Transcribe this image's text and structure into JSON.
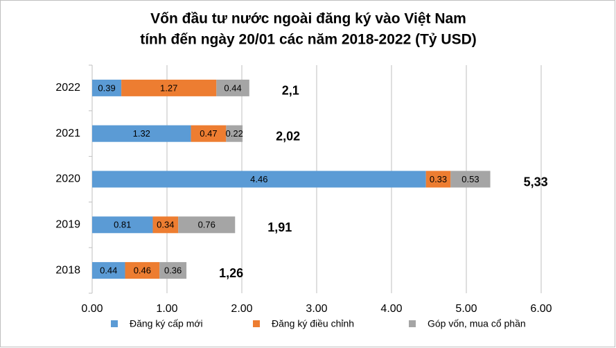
{
  "chart_data": {
    "type": "stacked-bar-horizontal",
    "title": [
      "Vốn đầu tư nước ngoài đăng ký vào Việt Nam",
      "tính đến ngày 20/01 các năm 2018-2022 (Tỷ USD)"
    ],
    "categories": [
      "2022",
      "2021",
      "2020",
      "2019",
      "2018"
    ],
    "series": [
      {
        "name": "Đăng ký cấp mới",
        "color": "#5b9bd5",
        "values": [
          0.39,
          1.32,
          4.46,
          0.81,
          0.44
        ]
      },
      {
        "name": "Đăng ký điều chỉnh",
        "color": "#ed7d31",
        "values": [
          1.27,
          0.47,
          0.33,
          0.34,
          0.46
        ]
      },
      {
        "name": "Góp vốn, mua cổ phần",
        "color": "#a5a5a5",
        "values": [
          0.44,
          0.22,
          0.53,
          0.76,
          0.36
        ]
      }
    ],
    "totals": {
      "values": [
        2.1,
        2.02,
        5.33,
        1.91,
        1.26
      ],
      "value_labels": [
        "2,1",
        "2,02",
        "5,33",
        "1,91",
        "1,26"
      ]
    },
    "xlim": [
      0,
      6
    ],
    "xticks": [
      {
        "value": 0,
        "label": "0.00"
      },
      {
        "value": 1,
        "label": "1.00"
      },
      {
        "value": 2,
        "label": "2.00"
      },
      {
        "value": 3,
        "label": "3.00"
      },
      {
        "value": 4,
        "label": "4.00"
      },
      {
        "value": 5,
        "label": "5.00"
      },
      {
        "value": 6,
        "label": "6.00"
      }
    ],
    "grid": true,
    "legend": "bottom"
  }
}
